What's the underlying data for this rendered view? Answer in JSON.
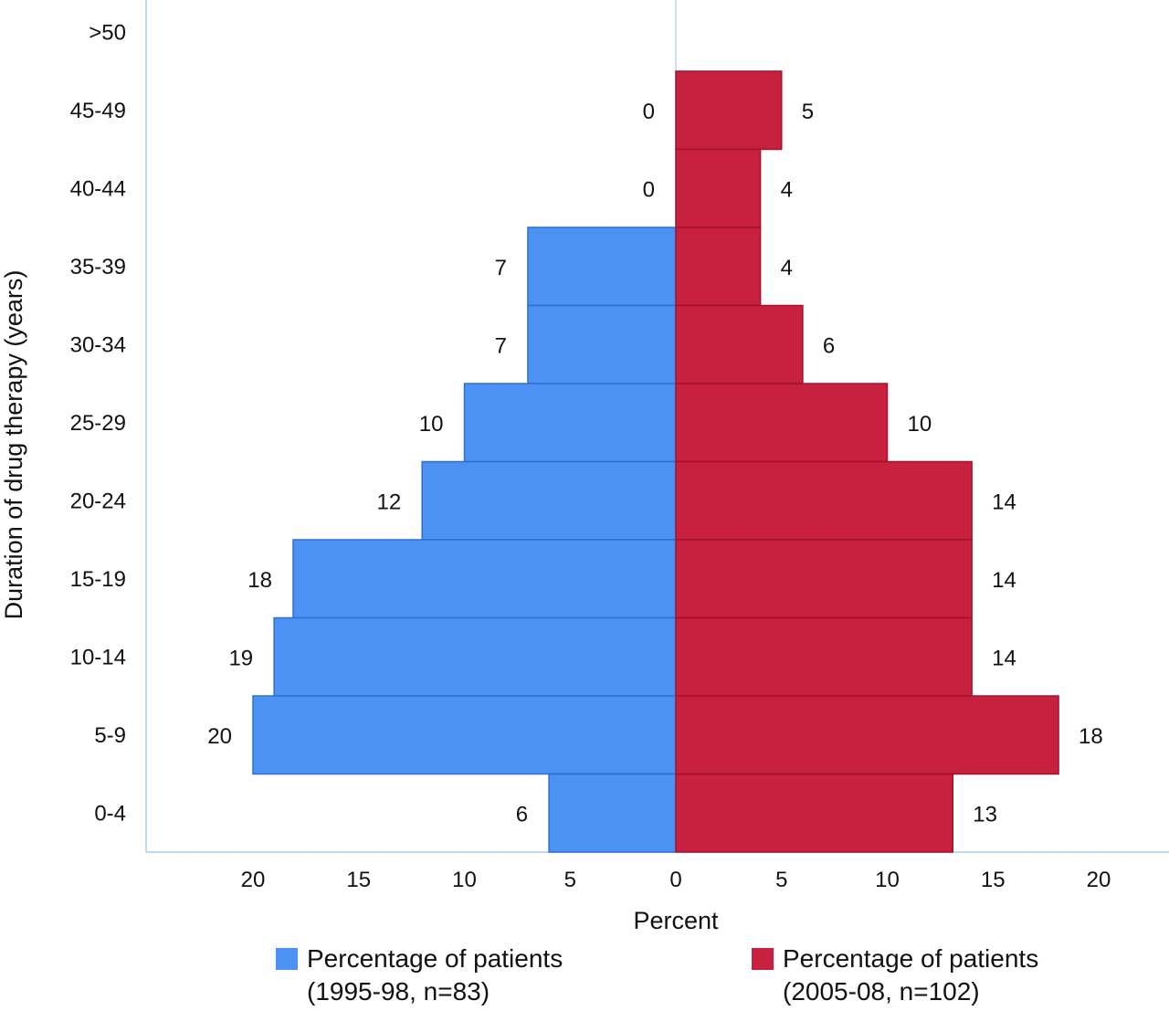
{
  "chart_data": {
    "type": "bar",
    "orientation": "horizontal",
    "style": "population-pyramid",
    "title": "",
    "ylabel": "Duration of drug therapy (years)",
    "xlabel": "Percent",
    "categories": [
      ">50",
      "45-49",
      "40-44",
      "35-39",
      "30-34",
      "25-29",
      "20-24",
      "15-19",
      "10-14",
      "5-9",
      "0-4"
    ],
    "xlim": [
      -25,
      23
    ],
    "xticks": [
      -20,
      -15,
      -10,
      -5,
      0,
      5,
      10,
      15,
      20
    ],
    "xtick_labels": [
      "20",
      "15",
      "10",
      "5",
      "0",
      "5",
      "10",
      "15",
      "20"
    ],
    "grid": false,
    "legend_position": "bottom",
    "series": [
      {
        "name": "Percentage of patients (1995-98, n=83)",
        "legend_line1": "Percentage of patients",
        "legend_line2": "(1995-98, n=83)",
        "side": "left",
        "color": "#4b92f3",
        "edge": "#2f6fd1",
        "values": [
          null,
          0,
          0,
          7.0,
          7.0,
          10.0,
          12.0,
          18.1,
          19.0,
          20.0,
          6.0
        ],
        "labels": [
          "",
          "0",
          "0",
          "7",
          "7",
          "10",
          "12",
          "18",
          "19",
          "20",
          "6"
        ]
      },
      {
        "name": "Percentage of patients (2005-08, n=102)",
        "legend_line1": "Percentage of patients",
        "legend_line2": "(2005-08, n=102)",
        "side": "right",
        "color": "#c8203f",
        "edge": "#a3122d",
        "values": [
          null,
          5.0,
          4.0,
          4.0,
          6.0,
          10.0,
          14.0,
          14.0,
          14.0,
          18.1,
          13.1
        ],
        "labels": [
          "",
          "5",
          "4",
          "4",
          "6",
          "10",
          "14",
          "14",
          "14",
          "18",
          "13"
        ]
      }
    ],
    "axis_color": "#a8cfee"
  }
}
